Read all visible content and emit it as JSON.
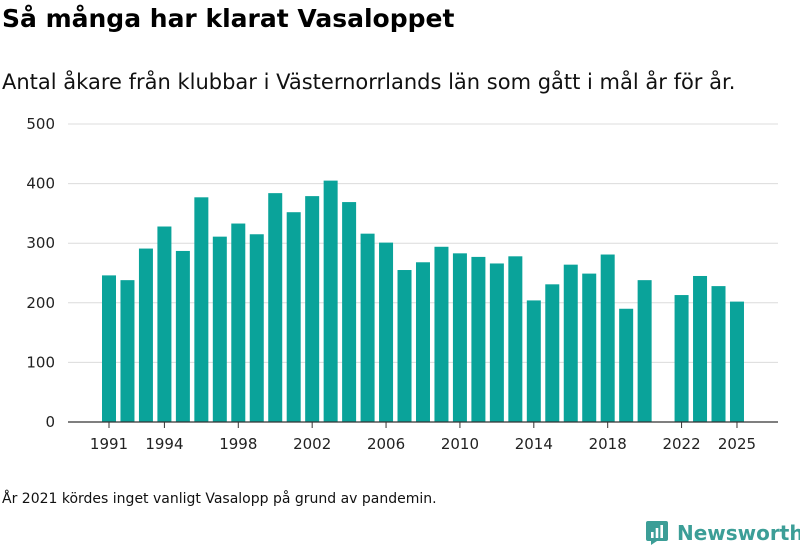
{
  "title": "Så många har klarat Vasaloppet",
  "subtitle": "Antal åkare från klubbar i Västernorrlands län som gått i mål år för år.",
  "footnote": "År 2021 kördes inget vanligt Vasalopp på grund av pandemin.",
  "brand": {
    "name": "Newsworthy",
    "color": "#3c9e97"
  },
  "chart_data": {
    "type": "bar",
    "bar_color": "#0aa39a",
    "x": [
      1991,
      1992,
      1993,
      1994,
      1995,
      1996,
      1997,
      1998,
      1999,
      2000,
      2001,
      2002,
      2003,
      2004,
      2005,
      2006,
      2007,
      2008,
      2009,
      2010,
      2011,
      2012,
      2013,
      2014,
      2015,
      2016,
      2017,
      2018,
      2019,
      2020,
      2021,
      2022,
      2023,
      2024,
      2025
    ],
    "values": [
      246,
      238,
      291,
      328,
      287,
      377,
      311,
      333,
      315,
      384,
      352,
      379,
      405,
      369,
      316,
      301,
      255,
      268,
      294,
      283,
      277,
      266,
      278,
      204,
      231,
      264,
      249,
      281,
      190,
      238,
      null,
      213,
      245,
      228,
      202
    ],
    "x_tick_labels": [
      "1991",
      "1994",
      "1998",
      "2002",
      "2006",
      "2010",
      "2014",
      "2018",
      "2022",
      "2025"
    ],
    "x_tick_values": [
      1991,
      1994,
      1998,
      2002,
      2006,
      2010,
      2014,
      2018,
      2022,
      2025
    ],
    "y_ticks": [
      0,
      100,
      200,
      300,
      400,
      500
    ],
    "ylim": [
      0,
      500
    ],
    "grid": true,
    "xlabel": "",
    "ylabel": ""
  }
}
